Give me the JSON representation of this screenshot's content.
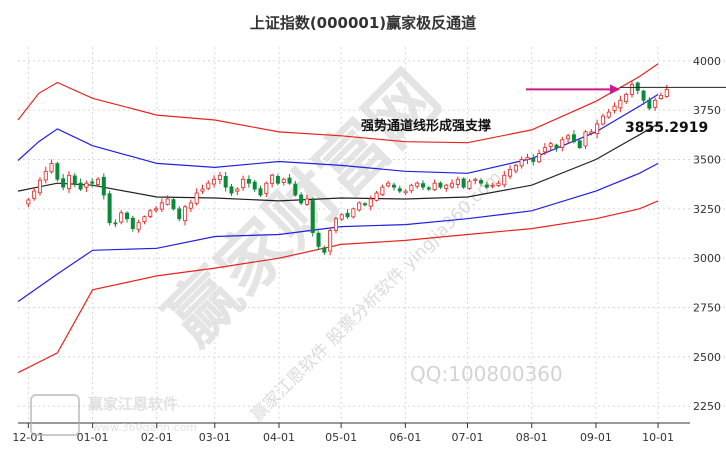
{
  "title": "上证指数(000001)赢家极反通道",
  "watermarks": {
    "big": "赢家财富网",
    "diag": "赢家江恩软件 股票分析软件 yingjia360.com",
    "qq": "QQ:100800360",
    "logo_text": "赢家江恩软件",
    "logo_url": "www.360gann.com"
  },
  "colors": {
    "up": "#e8231f",
    "down": "#0a8a39",
    "red_band": "#e8231f",
    "blue_band": "#2020e0",
    "center": "#222222",
    "annotation": "#cc1a8a"
  },
  "chart_data": {
    "type": "candlestick",
    "title": "上证指数(000001)赢家极反通道",
    "ylim": [
      2170,
      4070
    ],
    "yticks": [
      {
        "value": 2250,
        "label": "2250"
      },
      {
        "value": 2500,
        "label": "2500"
      },
      {
        "value": 2750,
        "label": "2750"
      },
      {
        "value": 3000,
        "label": "3000"
      },
      {
        "value": 3250,
        "label": "3250"
      },
      {
        "value": 3500,
        "label": "3500"
      },
      {
        "value": 3750,
        "label": "3750"
      },
      {
        "value": 4000,
        "label": "4000"
      }
    ],
    "xlim": [
      -5,
      317
    ],
    "xticks": [
      {
        "value": 0,
        "label": "12-01"
      },
      {
        "value": 31,
        "label": "01-01"
      },
      {
        "value": 62,
        "label": "02-01"
      },
      {
        "value": 90,
        "label": "03-01"
      },
      {
        "value": 121,
        "label": "04-01"
      },
      {
        "value": 151,
        "label": "05-01"
      },
      {
        "value": 182,
        "label": "06-01"
      },
      {
        "value": 212,
        "label": "07-01"
      },
      {
        "value": 243,
        "label": "08-01"
      },
      {
        "value": 274,
        "label": "09-01"
      },
      {
        "value": 304,
        "label": "10-01"
      }
    ],
    "candles_close": [
      3295,
      3340,
      3395,
      3440,
      3480,
      3400,
      3360,
      3420,
      3380,
      3350,
      3380,
      3380,
      3400,
      3320,
      3180,
      3175,
      3230,
      3200,
      3150,
      3180,
      3210,
      3240,
      3250,
      3280,
      3300,
      3250,
      3200,
      3260,
      3280,
      3330,
      3350,
      3380,
      3400,
      3420,
      3360,
      3330,
      3350,
      3400,
      3380,
      3350,
      3320,
      3380,
      3420,
      3380,
      3400,
      3380,
      3320,
      3280,
      3300,
      3130,
      3060,
      3030,
      3140,
      3200,
      3220,
      3210,
      3250,
      3280,
      3270,
      3300,
      3330,
      3360,
      3380,
      3360,
      3340,
      3340,
      3370,
      3380,
      3360,
      3350,
      3380,
      3360,
      3370,
      3380,
      3400,
      3360,
      3390,
      3400,
      3380,
      3360,
      3370,
      3380,
      3420,
      3450,
      3470,
      3500,
      3510,
      3490,
      3530,
      3560,
      3580,
      3560,
      3600,
      3620,
      3590,
      3560,
      3640,
      3640,
      3680,
      3720,
      3740,
      3770,
      3800,
      3830,
      3880,
      3850,
      3800,
      3760,
      3800,
      3825,
      3855
    ],
    "bands": [
      {
        "name": "outer-upper",
        "color": "#e8231f",
        "x": [
          -5,
          5,
          14,
          31,
          62,
          90,
          121,
          151,
          182,
          212,
          243,
          274,
          295,
          304
        ],
        "y": [
          3700,
          3835,
          3890,
          3810,
          3725,
          3700,
          3640,
          3620,
          3590,
          3585,
          3650,
          3795,
          3920,
          3985
        ]
      },
      {
        "name": "inner-upper",
        "color": "#2020e0",
        "x": [
          -5,
          5,
          14,
          31,
          62,
          90,
          121,
          151,
          182,
          212,
          243,
          274,
          295,
          304
        ],
        "y": [
          3495,
          3590,
          3655,
          3570,
          3480,
          3460,
          3490,
          3470,
          3440,
          3430,
          3505,
          3640,
          3770,
          3830
        ]
      },
      {
        "name": "center",
        "color": "#222222",
        "x": [
          -5,
          14,
          31,
          62,
          90,
          121,
          151,
          182,
          212,
          243,
          274,
          295,
          304
        ],
        "y": [
          3340,
          3380,
          3370,
          3310,
          3305,
          3290,
          3305,
          3300,
          3310,
          3370,
          3500,
          3625,
          3680
        ]
      },
      {
        "name": "inner-lower",
        "color": "#2020e0",
        "x": [
          -5,
          14,
          31,
          62,
          90,
          121,
          151,
          182,
          212,
          243,
          274,
          295,
          304
        ],
        "y": [
          2780,
          2920,
          3040,
          3050,
          3110,
          3120,
          3160,
          3170,
          3200,
          3240,
          3340,
          3430,
          3480
        ]
      },
      {
        "name": "outer-lower",
        "color": "#e8231f",
        "x": [
          -5,
          14,
          31,
          62,
          90,
          121,
          151,
          182,
          212,
          243,
          274,
          295,
          304
        ],
        "y": [
          2420,
          2520,
          2840,
          2910,
          2950,
          3000,
          3070,
          3090,
          3120,
          3150,
          3200,
          3250,
          3290
        ]
      }
    ],
    "annotation": {
      "text": "强势通道线形成强支撑",
      "price": "3855.2919",
      "value": 3855.2919
    }
  }
}
